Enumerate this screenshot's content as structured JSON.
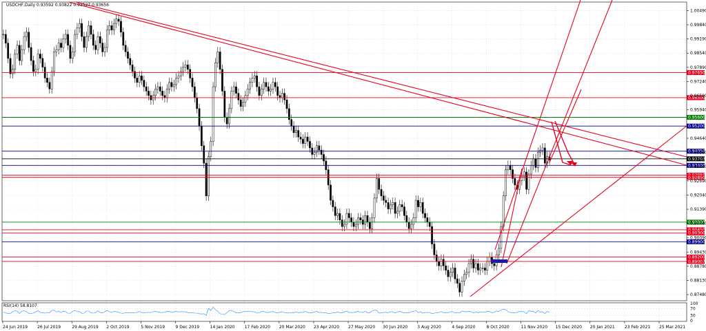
{
  "chart_data": {
    "type": "candlestick",
    "title": "USDCHF,Daily  0.93592 0.93822 0.93527 0.93656",
    "ylim": [
      0.872,
      1.0088
    ],
    "price_ticks": [
      "1.00490",
      "0.99840",
      "0.99190",
      "0.98540",
      "0.97890",
      "0.97240",
      "0.96590",
      "0.95940",
      "0.94640",
      "0.93990",
      "0.93340",
      "0.92690",
      "0.92040",
      "0.91390",
      "0.90740",
      "0.90090",
      "0.89430",
      "0.88780",
      "0.88130",
      "0.87480"
    ],
    "date_ticks": [
      "24 Jun 2019",
      "26 Jul 2019",
      "29 Aug 2019",
      "2 Oct 2019",
      "5 Nov 2019",
      "9 Dec 2019",
      "14 Jan 2020",
      "17 Feb 2020",
      "20 Mar 2020",
      "23 Apr 2020",
      "27 May 2020",
      "30 Jun 2020",
      "3 Aug 2020",
      "4 Sep 2020",
      "8 Oct 2020",
      "11 Nov 2020",
      "15 Dec 2020",
      "20 Jan 2021",
      "23 Feb 2021",
      "25 Mar 2021"
    ],
    "horizontal_levels": [
      {
        "value": 0.9765,
        "label": "0.97650",
        "color": "#e8001c"
      },
      {
        "value": 0.965,
        "label": "0.96500",
        "color": "#e8001c"
      },
      {
        "value": 0.956,
        "label": "0.95600",
        "color": "#008000"
      },
      {
        "value": 0.952,
        "label": "0.95200",
        "color": "#00008b"
      },
      {
        "value": 0.9405,
        "label": "0.94050",
        "color": "#00008b"
      },
      {
        "value": 0.937,
        "label": "0.93703",
        "color": "#000000"
      },
      {
        "value": 0.934,
        "label": "0.93400",
        "color": "#00008b"
      },
      {
        "value": 0.9295,
        "label": "0.92950",
        "color": "#e8001c"
      },
      {
        "value": 0.9285,
        "label": "0.92850",
        "color": "#e8001c"
      },
      {
        "value": 0.908,
        "label": "0.90800",
        "color": "#008000"
      },
      {
        "value": 0.9045,
        "label": "0.90450",
        "color": "#e8001c"
      },
      {
        "value": 0.903,
        "label": "0.90300",
        "color": "#e8001c"
      },
      {
        "value": 0.899,
        "label": "0.89900",
        "color": "#00008b"
      },
      {
        "value": 0.892,
        "label": "0.89200",
        "color": "#e8001c"
      },
      {
        "value": 0.89,
        "label": "0.89007",
        "color": "#e8001c"
      }
    ],
    "candles": [
      0.994,
      0.99,
      0.983,
      0.976,
      0.978,
      0.985,
      0.989,
      0.982,
      0.987,
      0.993,
      0.995,
      0.988,
      0.982,
      0.977,
      0.978,
      0.985,
      0.983,
      0.979,
      0.974,
      0.972,
      0.969,
      0.977,
      0.986,
      0.987,
      0.99,
      0.988,
      0.992,
      0.994,
      0.989,
      0.983,
      0.986,
      0.994,
      0.997,
      0.999,
      0.993,
      0.988,
      0.993,
      0.998,
      0.994,
      0.989,
      0.987,
      0.993,
      0.99,
      0.986,
      0.988,
      0.996,
      0.998,
      0.996,
      0.999,
      1.001,
      1.0,
      0.995,
      0.989,
      0.986,
      0.983,
      0.98,
      0.977,
      0.974,
      0.972,
      0.975,
      0.973,
      0.97,
      0.968,
      0.966,
      0.964,
      0.966,
      0.969,
      0.97,
      0.968,
      0.966,
      0.965,
      0.969,
      0.972,
      0.97,
      0.971,
      0.974,
      0.975,
      0.977,
      0.979,
      0.98,
      0.978,
      0.974,
      0.97,
      0.965,
      0.96,
      0.952,
      0.943,
      0.935,
      0.92,
      0.938,
      0.945,
      0.97,
      0.981,
      0.986,
      0.978,
      0.968,
      0.956,
      0.953,
      0.96,
      0.968,
      0.97,
      0.967,
      0.964,
      0.961,
      0.963,
      0.966,
      0.969,
      0.972,
      0.974,
      0.975,
      0.97,
      0.966,
      0.969,
      0.972,
      0.97,
      0.968,
      0.969,
      0.972,
      0.97,
      0.966,
      0.965,
      0.967,
      0.964,
      0.96,
      0.955,
      0.952,
      0.949,
      0.95,
      0.947,
      0.946,
      0.944,
      0.947,
      0.945,
      0.942,
      0.939,
      0.94,
      0.943,
      0.941,
      0.939,
      0.936,
      0.932,
      0.925,
      0.918,
      0.915,
      0.911,
      0.912,
      0.909,
      0.906,
      0.907,
      0.912,
      0.91,
      0.908,
      0.906,
      0.907,
      0.91,
      0.909,
      0.907,
      0.911,
      0.908,
      0.905,
      0.91,
      0.919,
      0.928,
      0.923,
      0.92,
      0.918,
      0.917,
      0.914,
      0.916,
      0.917,
      0.912,
      0.913,
      0.916,
      0.915,
      0.911,
      0.908,
      0.905,
      0.907,
      0.91,
      0.918,
      0.915,
      0.917,
      0.912,
      0.91,
      0.908,
      0.906,
      0.898,
      0.893,
      0.89,
      0.888,
      0.891,
      0.888,
      0.886,
      0.883,
      0.885,
      0.887,
      0.882,
      0.88,
      0.876,
      0.881,
      0.884,
      0.885,
      0.889,
      0.891,
      0.887,
      0.889,
      0.886,
      0.887,
      0.887,
      0.886,
      0.89,
      0.892,
      0.889,
      0.888,
      0.893,
      0.896,
      0.906,
      0.92,
      0.932,
      0.934,
      0.932,
      0.928,
      0.925,
      0.923,
      0.927,
      0.929,
      0.931,
      0.923,
      0.93,
      0.934,
      0.937,
      0.933,
      0.94,
      0.941,
      0.942,
      0.935,
      0.938,
      0.9365
    ],
    "trend_lines": [
      "descending resistance (double line)",
      "ascending channel",
      "support trendline"
    ],
    "indicator": {
      "label": "RSI(14) 58.8107",
      "levels": [
        "100",
        "70",
        "30",
        "0"
      ]
    }
  }
}
